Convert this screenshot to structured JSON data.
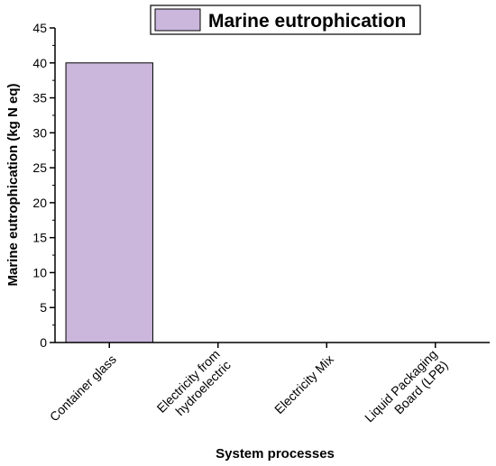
{
  "chart_data": {
    "type": "bar",
    "categories": [
      "Container glass",
      "Electricity from hydroelectric",
      "Electricity Mix",
      "Liquid Packaging Board (LPB)"
    ],
    "category_lines": [
      [
        "Container glass"
      ],
      [
        "Electricity from",
        "hydroelectric"
      ],
      [
        "Electricity Mix"
      ],
      [
        "Liquid Packaging",
        "Board (LPB)"
      ]
    ],
    "series": [
      {
        "name": "Marine eutrophication",
        "values": [
          40,
          0,
          0,
          0
        ],
        "color": "#cbb6dc"
      }
    ],
    "xlabel": "System processes",
    "ylabel": "Marine eutrophication (kg N eq)",
    "ylim": [
      0,
      45
    ],
    "yticks": [
      0,
      5,
      10,
      15,
      20,
      25,
      30,
      35,
      40,
      45
    ],
    "grid": false,
    "legend_position": "top-center"
  }
}
